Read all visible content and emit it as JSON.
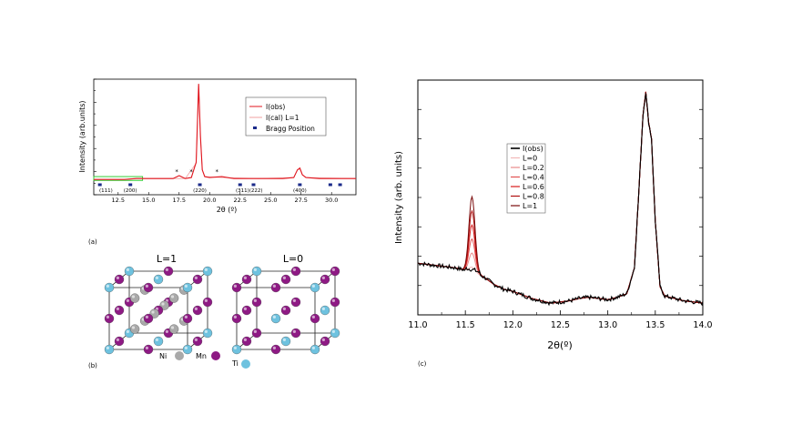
{
  "panel_labels": {
    "a": "(a)",
    "b": "(b)",
    "c": "(c)"
  },
  "chart_data": [
    {
      "type": "line",
      "panel": "(a)",
      "xlabel": "2θ (º)",
      "ylabel": "Intensity (arb.units)",
      "xlim": [
        10.5,
        32
      ],
      "ylim": [
        -0.16,
        1.05
      ],
      "x_ticks": [
        "12.5",
        "15.0",
        "17.5",
        "20.0",
        "22.5",
        "25.0",
        "27.5",
        "30.0"
      ],
      "legend": {
        "position": "top-right",
        "entries": [
          "I(obs)",
          "I(cal) L=1",
          "Bragg Position"
        ]
      },
      "series": [
        {
          "name": "I(obs)",
          "color": "#e0141c",
          "x": [
            10.5,
            12,
            13,
            14,
            15,
            16,
            17,
            17.5,
            18,
            18.5,
            18.9,
            19.1,
            19.25,
            19.4,
            19.6,
            20,
            21,
            22,
            23,
            24,
            25,
            26,
            26.9,
            27.2,
            27.4,
            27.6,
            27.9,
            29,
            30,
            31,
            32
          ],
          "y": [
            0.0,
            0.0,
            0.0,
            0.01,
            0.01,
            0.01,
            0.01,
            0.04,
            0.01,
            0.02,
            0.18,
            1.0,
            0.45,
            0.1,
            0.03,
            0.02,
            0.03,
            0.01,
            0.01,
            0.01,
            0.01,
            0.01,
            0.02,
            0.1,
            0.12,
            0.05,
            0.02,
            0.01,
            0.01,
            0.01,
            0.01
          ]
        },
        {
          "name": "I(cal) L=1",
          "color": "#f0a0a0",
          "x": [
            10.5,
            13,
            14,
            17,
            18,
            18.9,
            19.1,
            19.25,
            19.4,
            19.6,
            21,
            24,
            26.9,
            27.2,
            27.4,
            27.6,
            27.9,
            32
          ],
          "y": [
            0.0,
            0.0,
            0.01,
            0.01,
            0.01,
            0.17,
            0.98,
            0.44,
            0.1,
            0.03,
            0.02,
            0.01,
            0.02,
            0.1,
            0.11,
            0.05,
            0.02,
            0.01
          ]
        }
      ],
      "bragg_positions": [
        11,
        13.5,
        19.2,
        22.5,
        23.6,
        27.4,
        29.9,
        30.7
      ],
      "reflections": [
        {
          "x": 11.5,
          "label": "(111)"
        },
        {
          "x": 13.5,
          "label": "(200)"
        },
        {
          "x": 19.2,
          "label": "(220)"
        },
        {
          "x": 22.7,
          "label": "(311)"
        },
        {
          "x": 23.8,
          "label": "(222)"
        },
        {
          "x": 27.4,
          "label": "(400)"
        }
      ],
      "highlight_box": {
        "x_range": [
          10.5,
          14.5
        ],
        "color": "#33cc33"
      },
      "impurity_marks": [
        {
          "x": 17.3,
          "label": "*"
        },
        {
          "x": 18.5,
          "label": "*"
        },
        {
          "x": 20.6,
          "label": "*"
        }
      ]
    },
    {
      "type": "line",
      "panel": "(c)",
      "xlabel": "2θ(º)",
      "ylabel": "Intensity (arb. units)",
      "xlim": [
        11.0,
        14.0
      ],
      "ylim": [
        0,
        1.0
      ],
      "x_ticks": [
        "11.0",
        "11.5",
        "12.0",
        "12.5",
        "13.0",
        "13.5",
        "14.0"
      ],
      "legend": {
        "position": "upper-left",
        "entries": [
          "I(obs)",
          "L=0",
          "L=0.2",
          "L=0.4",
          "L=0.6",
          "L=0.8",
          "L=1"
        ]
      },
      "observed": {
        "name": "I(obs)",
        "color": "#000000",
        "x": [
          11.0,
          11.1,
          11.2,
          11.3,
          11.4,
          11.5,
          11.6,
          11.7,
          11.8,
          11.9,
          12.0,
          12.1,
          12.2,
          12.3,
          12.4,
          12.5,
          12.6,
          12.7,
          12.8,
          12.9,
          13.0,
          13.1,
          13.2,
          13.28,
          13.33,
          13.37,
          13.4,
          13.43,
          13.46,
          13.5,
          13.55,
          13.6,
          13.7,
          13.8,
          13.9,
          14.0
        ],
        "y": [
          0.22,
          0.215,
          0.21,
          0.205,
          0.2,
          0.19,
          0.18,
          0.16,
          0.13,
          0.11,
          0.1,
          0.085,
          0.07,
          0.06,
          0.05,
          0.055,
          0.06,
          0.07,
          0.075,
          0.07,
          0.065,
          0.075,
          0.09,
          0.2,
          0.55,
          0.85,
          0.95,
          0.82,
          0.75,
          0.4,
          0.12,
          0.08,
          0.07,
          0.06,
          0.055,
          0.05
        ]
      },
      "series": [
        {
          "name": "L=0",
          "color": "#f2b8b8",
          "peak": 0.02
        },
        {
          "name": "L=0.2",
          "color": "#ea8a8a",
          "peak": 0.08
        },
        {
          "name": "L=0.4",
          "color": "#e25252",
          "peak": 0.14
        },
        {
          "name": "L=0.6",
          "color": "#d81a1a",
          "peak": 0.2
        },
        {
          "name": "L=0.8",
          "color": "#b01010",
          "peak": 0.26
        },
        {
          "name": "L=1",
          "color": "#7a0a0a",
          "peak": 0.32
        }
      ]
    }
  ],
  "structures": [
    {
      "title": "L=1"
    },
    {
      "title": "L=0"
    }
  ],
  "atom_legend": [
    {
      "label": "Ni",
      "color": "#a9a9a9"
    },
    {
      "label": "Mn",
      "color": "#8e1a84"
    },
    {
      "label": "Ti",
      "color": "#6ec2df"
    }
  ]
}
